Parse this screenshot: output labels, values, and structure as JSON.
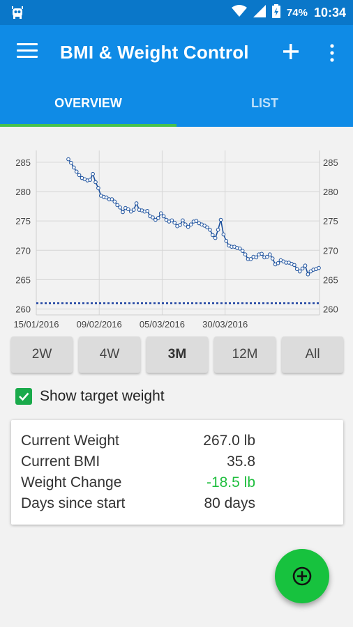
{
  "status_bar": {
    "battery_percent": "74%",
    "time": "10:34"
  },
  "app_bar": {
    "title": "BMI & Weight Control"
  },
  "tabs": [
    {
      "label": "OVERVIEW",
      "active": true
    },
    {
      "label": "LIST",
      "active": false
    }
  ],
  "chart_data": {
    "type": "line",
    "y_ticks": [
      "285",
      "280",
      "275",
      "270",
      "265",
      "260"
    ],
    "y_tick_values": [
      285,
      280,
      275,
      270,
      265,
      260
    ],
    "x_tick_labels": [
      "15/01/2016",
      "09/02/2016",
      "05/03/2016",
      "30/03/2016"
    ],
    "ylim": [
      259,
      287
    ],
    "target_weight": 261,
    "grid": true,
    "series_color": "#1a4f9c",
    "target_color": "#1a3fa0",
    "series": [
      {
        "values": [
          285.5,
          284.9,
          284.1,
          283.4,
          282.8,
          282.3,
          282.1,
          281.9,
          282.0,
          283.0,
          281.6,
          280.6,
          279.3,
          279.1,
          279.0,
          278.7,
          278.7,
          278.3,
          277.7,
          277.3,
          276.5,
          277.2,
          277.0,
          276.6,
          276.9,
          278.0,
          276.9,
          276.8,
          276.6,
          276.7,
          275.8,
          275.6,
          275.2,
          275.5,
          276.3,
          275.8,
          275.2,
          274.9,
          275.1,
          274.7,
          274.1,
          274.3,
          275.1,
          274.4,
          274.0,
          274.4,
          274.9,
          275.0,
          274.6,
          274.4,
          274.2,
          273.9,
          273.5,
          272.6,
          272.1,
          273.5,
          275.2,
          272.7,
          271.6,
          270.8,
          270.6,
          270.6,
          270.4,
          270.3,
          269.9,
          269.3,
          268.5,
          268.5,
          268.9,
          268.8,
          269.3,
          269.4,
          268.8,
          268.9,
          269.3,
          268.6,
          267.6,
          267.8,
          268.3,
          268.1,
          267.9,
          267.9,
          267.7,
          267.5,
          266.8,
          266.4,
          266.9,
          267.4,
          265.9,
          266.4,
          266.7,
          266.8,
          267.0
        ]
      }
    ]
  },
  "range_buttons": [
    {
      "label": "2W",
      "selected": false
    },
    {
      "label": "4W",
      "selected": false
    },
    {
      "label": "3M",
      "selected": true
    },
    {
      "label": "12M",
      "selected": false
    },
    {
      "label": "All",
      "selected": false
    }
  ],
  "target_toggle": {
    "label": "Show target weight",
    "checked": true
  },
  "stats": {
    "current_weight_label": "Current Weight",
    "current_weight_value": "267.0 lb",
    "current_bmi_label": "Current BMI",
    "current_bmi_value": "35.8",
    "weight_change_label": "Weight Change",
    "weight_change_value": "-18.5 lb",
    "days_label": "Days since start",
    "days_value": "80 days"
  },
  "colors": {
    "primary": "#0f8be6",
    "status_bar": "#0a77c9",
    "accent_green": "#17c23e",
    "positive_change": "#1fbe3e"
  },
  "icons": {
    "menu": "hamburger-menu-icon",
    "add": "plus-icon",
    "more": "more-vertical-icon",
    "fab": "add-circle-icon"
  }
}
